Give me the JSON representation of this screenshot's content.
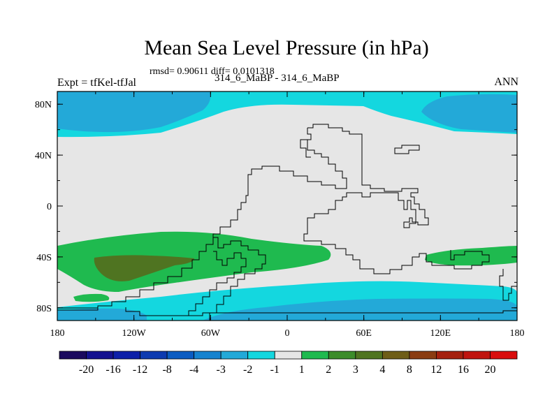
{
  "chart_data": {
    "type": "heatmap",
    "title": "Mean Sea Level Pressure (in hPa)",
    "stats_text": "rmsd= 0.90611 diff= 0.0101318",
    "left_label": "Expt = tfKel-tfJal",
    "center_label": "314_6_MaBP - 314_6_MaBP",
    "right_label": "ANN",
    "x_ticks": [
      "180",
      "120W",
      "60W",
      "0",
      "60E",
      "120E",
      "180"
    ],
    "y_ticks": [
      "80N",
      "40N",
      "0",
      "40S",
      "80S"
    ],
    "xlim": [
      -180,
      180
    ],
    "ylim": [
      -90,
      90
    ],
    "colorbar": {
      "labels": [
        "-20",
        "-16",
        "-12",
        "-8",
        "-4",
        "-3",
        "-2",
        "-1",
        "1",
        "2",
        "3",
        "4",
        "8",
        "12",
        "16",
        "20"
      ],
      "colors": [
        "#1b0a5e",
        "#14118f",
        "#0d1fa8",
        "#0d3bb0",
        "#0b5cc2",
        "#1683cf",
        "#23a9d8",
        "#14d7df",
        "#e6e6e6",
        "#1fba4f",
        "#3c8c2b",
        "#4f7421",
        "#6e5d17",
        "#8a3c11",
        "#a5200e",
        "#c0140f",
        "#d90d0d"
      ]
    },
    "regions": [
      {
        "level": "-1 to -2",
        "color": "#14d7df",
        "lat": [
          60,
          90
        ],
        "lon": [
          -180,
          180
        ]
      },
      {
        "level": "-2 to -3",
        "color": "#23a9d8",
        "lat": [
          62,
          88
        ],
        "lon": [
          -180,
          -60
        ]
      },
      {
        "level": "-2 to -3",
        "color": "#23a9d8",
        "lat": [
          63,
          88
        ],
        "lon": [
          110,
          180
        ]
      },
      {
        "level": "1 to 2",
        "color": "#1fba4f",
        "lat": [
          -68,
          -28
        ],
        "lon": [
          -180,
          40
        ]
      },
      {
        "level": "1 to 2",
        "color": "#1fba4f",
        "lat": [
          -50,
          -32
        ],
        "lon": [
          110,
          180
        ]
      },
      {
        "level": "3 to 4",
        "color": "#4f7421",
        "lat": [
          -60,
          -38
        ],
        "lon": [
          -150,
          -90
        ]
      },
      {
        "level": "-1 to -2",
        "color": "#14d7df",
        "lat": [
          -90,
          -60
        ],
        "lon": [
          -180,
          180
        ]
      },
      {
        "level": "-2 to -3",
        "color": "#23a9d8",
        "lat": [
          -90,
          -70
        ],
        "lon": [
          -100,
          180
        ]
      }
    ]
  }
}
